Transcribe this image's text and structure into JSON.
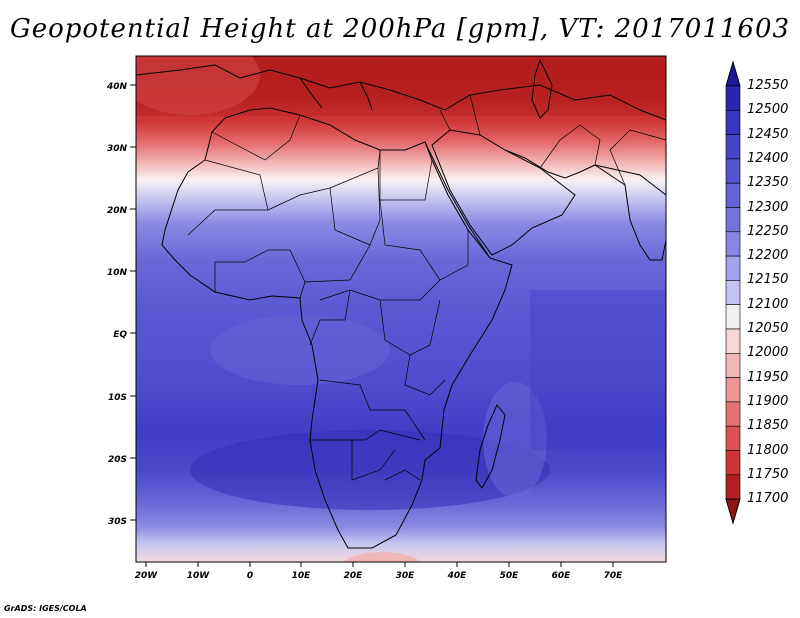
{
  "title": "Geopotential Height at 200hPa [gpm], VT: 2017011603",
  "map": {
    "lon_ticks": [
      "20W",
      "10W",
      "0",
      "10E",
      "20E",
      "30E",
      "40E",
      "50E",
      "60E",
      "70E"
    ],
    "lat_ticks": [
      "40N",
      "30N",
      "20N",
      "10N",
      "EQ",
      "10S",
      "20S",
      "30S"
    ],
    "lon_range": [
      -22,
      80
    ],
    "lat_range": [
      -37,
      45
    ]
  },
  "colorbar": {
    "levels": [
      "12550",
      "12500",
      "12450",
      "12400",
      "12350",
      "12300",
      "12250",
      "12200",
      "12150",
      "12100",
      "12050",
      "12000",
      "11950",
      "11900",
      "11850",
      "11800",
      "11750",
      "11700"
    ],
    "colors": [
      "#1c1a9a",
      "#2b26ad",
      "#3834bf",
      "#4743c9",
      "#5653cf",
      "#6562d6",
      "#7674dc",
      "#8987e3",
      "#a3a2ea",
      "#c3c2f2",
      "#f4f0f0",
      "#f6d6d6",
      "#f2b6b6",
      "#ec9696",
      "#e47474",
      "#dc5252",
      "#cf3434",
      "#b22020",
      "#921414"
    ]
  },
  "credit": "GrADS: IGES/COLA"
}
